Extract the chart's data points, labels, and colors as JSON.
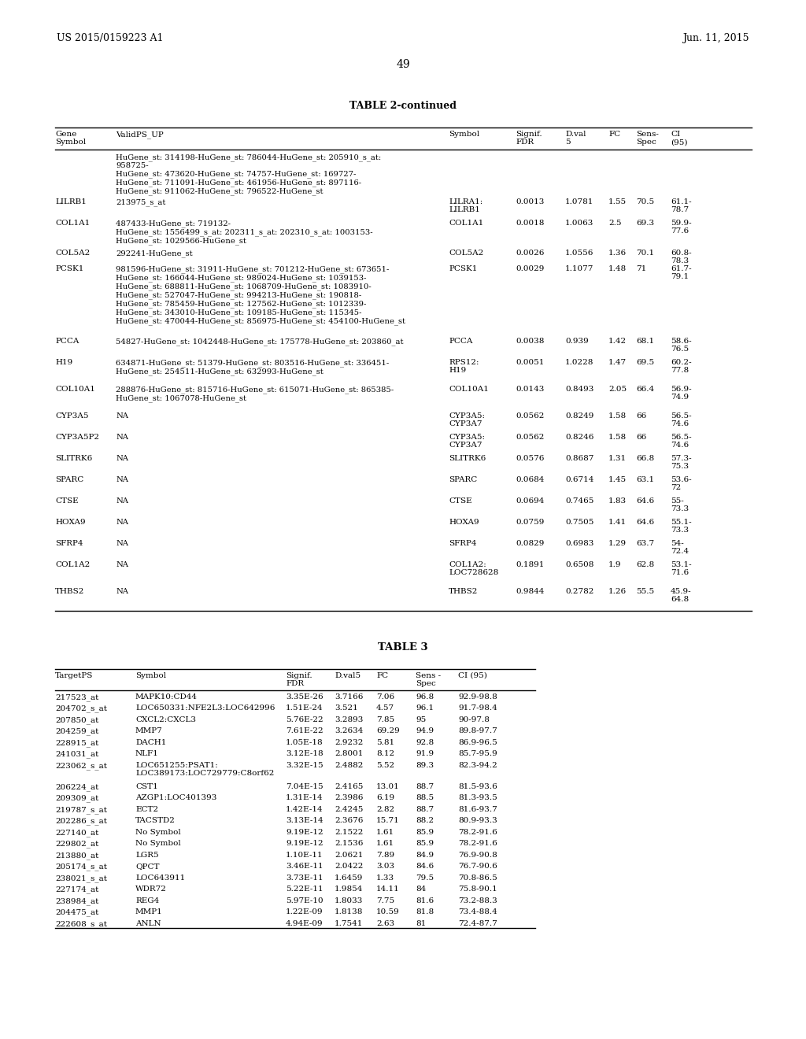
{
  "page_header_left": "US 2015/0159223 A1",
  "page_header_right": "Jun. 11, 2015",
  "page_number": "49",
  "table2_title": "TABLE 2-continued",
  "table3_title": "TABLE 3",
  "table2_rows": [
    [
      "",
      "HuGene_st: 314198-HuGene_st: 786044-HuGene_st: 205910_s_at:\n958725-\nHuGene_st: 473620-HuGene_st: 74757-HuGene_st: 169727-\nHuGene_st: 711091-HuGene_st: 461956-HuGene_st: 897116-\nHuGene_st: 911062-HuGene_st: 796522-HuGene_st",
      "",
      "",
      "",
      "",
      "",
      ""
    ],
    [
      "LILRB1",
      "213975_s_at",
      "LILRA1:\nLILRB1",
      "0.0013",
      "1.0781",
      "1.55",
      "70.5",
      "61.1-\n78.7"
    ],
    [
      "COL1A1",
      "487433-HuGene_st: 719132-\nHuGene_st: 1556499_s_at: 202311_s_at: 202310_s_at: 1003153-\nHuGene_st: 1029566-HuGene_st",
      "COL1A1",
      "0.0018",
      "1.0063",
      "2.5",
      "69.3",
      "59.9-\n77.6"
    ],
    [
      "COL5A2",
      "292241-HuGene_st",
      "COL5A2",
      "0.0026",
      "1.0556",
      "1.36",
      "70.1",
      "60.8-\n78.3"
    ],
    [
      "PCSK1",
      "981596-HuGene_st: 31911-HuGene_st: 701212-HuGene_st: 673651-\nHuGene_st: 166044-HuGene_st: 989024-HuGene_st: 1039153-\nHuGene_st: 688811-HuGene_st: 1068709-HuGene_st: 1083910-\nHuGene_st: 527047-HuGene_st: 994213-HuGene_st: 190818-\nHuGene_st: 785459-HuGene_st: 127562-HuGene_st: 1012339-\nHuGene_st: 343010-HuGene_st: 109185-HuGene_st: 115345-\nHuGene_st: 470044-HuGene_st: 856975-HuGene_st: 454100-HuGene_st",
      "PCSK1",
      "0.0029",
      "1.1077",
      "1.48",
      "71",
      "61.7-\n79.1"
    ],
    [
      "PCCA",
      "54827-HuGene_st: 1042448-HuGene_st: 175778-HuGene_st: 203860_at",
      "PCCA",
      "0.0038",
      "0.939",
      "1.42",
      "68.1",
      "58.6-\n76.5"
    ],
    [
      "H19",
      "634871-HuGene_st: 51379-HuGene_st: 803516-HuGene_st: 336451-\nHuGene_st: 254511-HuGene_st: 632993-HuGene_st",
      "RPS12:\nH19",
      "0.0051",
      "1.0228",
      "1.47",
      "69.5",
      "60.2-\n77.8"
    ],
    [
      "COL10A1",
      "288876-HuGene_st: 815716-HuGene_st: 615071-HuGene_st: 865385-\nHuGene_st: 1067078-HuGene_st",
      "COL10A1",
      "0.0143",
      "0.8493",
      "2.05",
      "66.4",
      "56.9-\n74.9"
    ],
    [
      "CYP3A5",
      "NA",
      "CYP3A5:\nCYP3A7",
      "0.0562",
      "0.8249",
      "1.58",
      "66",
      "56.5-\n74.6"
    ],
    [
      "CYP3A5P2",
      "NA",
      "CYP3A5:\nCYP3A7",
      "0.0562",
      "0.8246",
      "1.58",
      "66",
      "56.5-\n74.6"
    ],
    [
      "SLITRK6",
      "NA",
      "SLITRK6",
      "0.0576",
      "0.8687",
      "1.31",
      "66.8",
      "57.3-\n75.3"
    ],
    [
      "SPARC",
      "NA",
      "SPARC",
      "0.0684",
      "0.6714",
      "1.45",
      "63.1",
      "53.6-\n72"
    ],
    [
      "CTSE",
      "NA",
      "CTSE",
      "0.0694",
      "0.7465",
      "1.83",
      "64.6",
      "55-\n73.3"
    ],
    [
      "HOXA9",
      "NA",
      "HOXA9",
      "0.0759",
      "0.7505",
      "1.41",
      "64.6",
      "55.1-\n73.3"
    ],
    [
      "SFRP4",
      "NA",
      "SFRP4",
      "0.0829",
      "0.6983",
      "1.29",
      "63.7",
      "54-\n72.4"
    ],
    [
      "COL1A2",
      "NA",
      "COL1A2:\nLOC728628",
      "0.1891",
      "0.6508",
      "1.9",
      "62.8",
      "53.1-\n71.6"
    ],
    [
      "THBS2",
      "NA",
      "THBS2",
      "0.9844",
      "0.2782",
      "1.26",
      "55.5",
      "45.9-\n64.8"
    ]
  ],
  "table3_rows": [
    [
      "217523_at",
      "MAPK10:CD44",
      "3.35E-26",
      "3.7166",
      "7.06",
      "96.8",
      "92.9-98.8"
    ],
    [
      "204702_s_at",
      "LOC650331:NFE2L3:LOC642996",
      "1.51E-24",
      "3.521",
      "4.57",
      "96.1",
      "91.7-98.4"
    ],
    [
      "207850_at",
      "CXCL2:CXCL3",
      "5.76E-22",
      "3.2893",
      "7.85",
      "95",
      "90-97.8"
    ],
    [
      "204259_at",
      "MMP7",
      "7.61E-22",
      "3.2634",
      "69.29",
      "94.9",
      "89.8-97.7"
    ],
    [
      "228915_at",
      "DACH1",
      "1.05E-18",
      "2.9232",
      "5.81",
      "92.8",
      "86.9-96.5"
    ],
    [
      "241031_at",
      "NLF1",
      "3.12E-18",
      "2.8001",
      "8.12",
      "91.9",
      "85.7-95.9"
    ],
    [
      "223062_s_at",
      "LOC651255:PSAT1:\nLOC389173:LOC729779:C8orf62",
      "3.32E-15",
      "2.4882",
      "5.52",
      "89.3",
      "82.3-94.2"
    ],
    [
      "206224_at",
      "CST1",
      "7.04E-15",
      "2.4165",
      "13.01",
      "88.7",
      "81.5-93.6"
    ],
    [
      "209309_at",
      "AZGP1:LOC401393",
      "1.31E-14",
      "2.3986",
      "6.19",
      "88.5",
      "81.3-93.5"
    ],
    [
      "219787_s_at",
      "ECT2",
      "1.42E-14",
      "2.4245",
      "2.82",
      "88.7",
      "81.6-93.7"
    ],
    [
      "202286_s_at",
      "TACSTD2",
      "3.13E-14",
      "2.3676",
      "15.71",
      "88.2",
      "80.9-93.3"
    ],
    [
      "227140_at",
      "No Symbol",
      "9.19E-12",
      "2.1522",
      "1.61",
      "85.9",
      "78.2-91.6"
    ],
    [
      "229802_at",
      "No Symbol",
      "9.19E-12",
      "2.1536",
      "1.61",
      "85.9",
      "78.2-91.6"
    ],
    [
      "213880_at",
      "LGR5",
      "1.10E-11",
      "2.0621",
      "7.89",
      "84.9",
      "76.9-90.8"
    ],
    [
      "205174_s_at",
      "QPCT",
      "3.46E-11",
      "2.0422",
      "3.03",
      "84.6",
      "76.7-90.6"
    ],
    [
      "238021_s_at",
      "LOC643911",
      "3.73E-11",
      "1.6459",
      "1.33",
      "79.5",
      "70.8-86.5"
    ],
    [
      "227174_at",
      "WDR72",
      "5.22E-11",
      "1.9854",
      "14.11",
      "84",
      "75.8-90.1"
    ],
    [
      "238984_at",
      "REG4",
      "5.97E-10",
      "1.8033",
      "7.75",
      "81.6",
      "73.2-88.3"
    ],
    [
      "204475_at",
      "MMP1",
      "1.22E-09",
      "1.8138",
      "10.59",
      "81.8",
      "73.4-88.4"
    ],
    [
      "222608_s_at",
      "ANLN",
      "4.94E-09",
      "1.7541",
      "2.63",
      "81",
      "72.4-87.7"
    ]
  ],
  "bg_color": "#ffffff"
}
